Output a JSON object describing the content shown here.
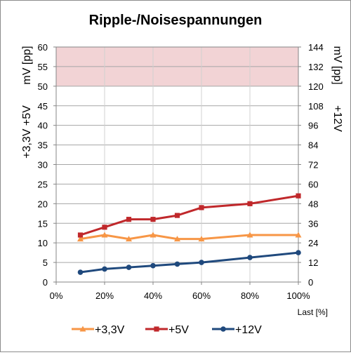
{
  "chart_data": {
    "type": "line",
    "title": "Ripple-/Noisespannungen",
    "xlabel": "Last [%]",
    "ylabel_left_line1": "mV [pp]",
    "ylabel_left_line2": "+3,3V  +5V",
    "ylabel_right_line1": "mV [pp]",
    "ylabel_right_line2": "+12V",
    "xlim": [
      0,
      100
    ],
    "x_ticks": [
      "0%",
      "20%",
      "40%",
      "60%",
      "80%",
      "100%"
    ],
    "ylim_left": [
      0,
      60
    ],
    "y_ticks_left": [
      "0",
      "5",
      "10",
      "15",
      "20",
      "25",
      "30",
      "35",
      "40",
      "45",
      "50",
      "55",
      "60"
    ],
    "ylim_right": [
      0,
      144
    ],
    "y_ticks_right": [
      "0",
      "12",
      "24",
      "36",
      "48",
      "60",
      "72",
      "84",
      "96",
      "108",
      "120",
      "132",
      "144"
    ],
    "grid": true,
    "limit_band_left": [
      50,
      60
    ],
    "legend_position": "bottom",
    "series": [
      {
        "name": "+3,3V",
        "axis": "left",
        "marker": "triangle",
        "color": "#f79646",
        "x": [
          10,
          20,
          30,
          40,
          50,
          60,
          80,
          100
        ],
        "values": [
          11,
          12,
          11,
          12,
          11,
          11,
          12,
          12
        ]
      },
      {
        "name": "+5V",
        "axis": "left",
        "marker": "square",
        "color": "#c0282b",
        "x": [
          10,
          20,
          30,
          40,
          50,
          60,
          80,
          100
        ],
        "values": [
          12,
          14,
          16,
          16,
          17,
          19,
          20,
          22
        ]
      },
      {
        "name": "+12V",
        "axis": "right",
        "marker": "circle",
        "color": "#1f497d",
        "x": [
          10,
          20,
          30,
          40,
          50,
          60,
          80,
          100
        ],
        "values": [
          6,
          8,
          9,
          10,
          11,
          12,
          15,
          18
        ]
      }
    ]
  }
}
